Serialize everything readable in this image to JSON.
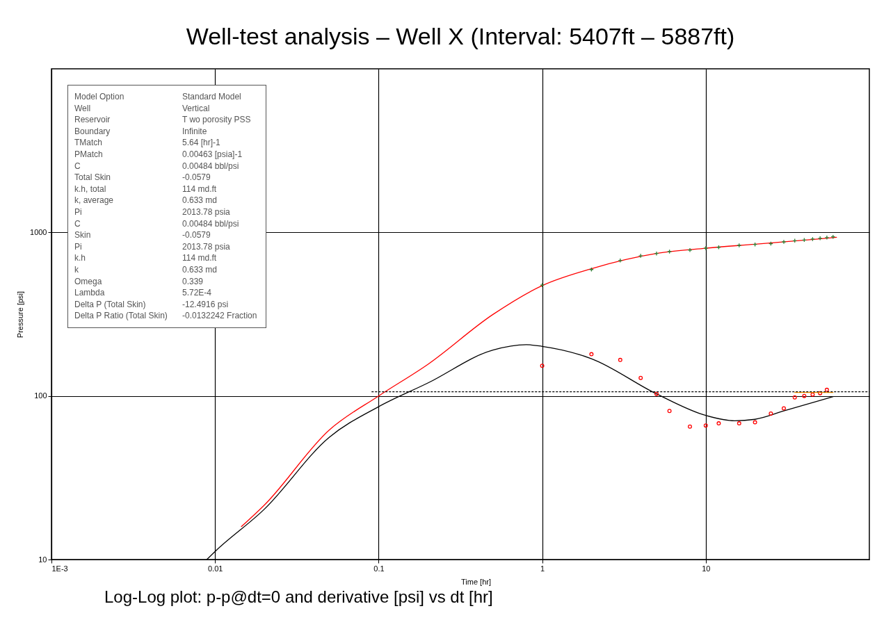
{
  "chart_data": {
    "type": "line",
    "title": "Well-test analysis – Well X (Interval: 5407ft – 5887ft)",
    "xlabel": "Time [hr]",
    "ylabel": "Pressure [psi]",
    "log": "xy",
    "grid": true,
    "xlim": [
      0.001,
      100
    ],
    "xticks": [
      {
        "value": 0.001,
        "label": "1E-3"
      },
      0.01,
      0.1,
      1,
      10
    ],
    "ylim": [
      10,
      10000
    ],
    "yticks": [
      10,
      100,
      1000
    ],
    "series": [
      {
        "color": "#ff0000",
        "marker": "none",
        "line_style": "solid",
        "x": [
          0.0145,
          0.02,
          0.05,
          0.1,
          0.2,
          0.5,
          1,
          2,
          5,
          10,
          20,
          50,
          63
        ],
        "values": [
          15.9,
          21.5,
          62,
          100,
          156,
          315,
          473,
          600,
          743,
          800,
          847,
          914,
          934
        ]
      },
      {
        "color": "#000000",
        "marker": "none",
        "line_style": "solid",
        "x": [
          0.0089,
          0.01,
          0.02,
          0.05,
          0.1,
          0.2,
          0.5,
          0.8,
          1,
          2,
          5,
          10,
          15,
          20,
          30,
          60
        ],
        "values": [
          10,
          11.2,
          20.3,
          56,
          86,
          120,
          191,
          206,
          201,
          169,
          103,
          76,
          70.5,
          72,
          81,
          99
        ]
      },
      {
        "type": "scatter",
        "color": "#2e7d32",
        "marker": "cross",
        "x": [
          1,
          2,
          3,
          4,
          5,
          6,
          8,
          10,
          12,
          16,
          20,
          25,
          30,
          35,
          40,
          45,
          50,
          55,
          60
        ],
        "values": [
          476,
          593,
          673,
          719,
          743,
          763,
          780,
          801,
          811,
          833,
          844,
          853,
          875,
          889,
          898,
          910,
          920,
          929,
          940
        ]
      },
      {
        "type": "scatter",
        "color": "#ff0000",
        "marker": "circle",
        "x": [
          1,
          2,
          3,
          4,
          5,
          6,
          8,
          10,
          12,
          16,
          20,
          25,
          30,
          35,
          40,
          45,
          50,
          55
        ],
        "values": [
          153,
          180,
          166,
          129,
          103,
          81,
          65,
          66,
          68,
          68,
          69,
          78,
          84,
          98,
          100,
          102,
          104,
          109
        ]
      },
      {
        "color": "#ff9900",
        "marker": "none",
        "line_style": "solid",
        "x": [
          35,
          60
        ],
        "values": [
          105,
          105
        ]
      },
      {
        "color": "#000000",
        "marker": "none",
        "line_style": "dotted",
        "x": [
          0.091,
          100
        ],
        "values": [
          106,
          106
        ]
      }
    ],
    "annotations": [
      "Model Option",
      "Standard Model",
      "Well",
      "Vertical",
      "Reservoir",
      "T wo porosity PSS",
      "Boundary",
      "Infinite",
      "TMatch",
      "5.64 [hr]-1",
      "PMatch",
      "0.00463 [psia]-1",
      "C",
      "0.00484 bbl/psi",
      "Total Skin",
      "-0.0579",
      "k.h, total",
      "114 md.ft",
      "k, average",
      "0.633 md",
      "Pi",
      "2013.78 psia",
      "C",
      "0.00484 bbl/psi",
      "Skin",
      "-0.0579",
      "Pi",
      "2013.78 psia",
      "k.h",
      "114 md.ft",
      "k",
      "0.633 md",
      "Omega",
      "0.339",
      "Lambda",
      "5.72E-4",
      "Delta P (Total Skin)",
      "-12.4916 psi",
      "Delta P Ratio (Total Skin)",
      "-0.0132242 Fraction",
      "Log-Log plot: p-p@dt=0 and derivative [psi] vs dt [hr]"
    ]
  }
}
